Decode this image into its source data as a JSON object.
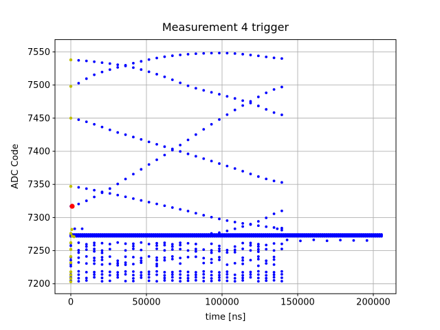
{
  "figure": {
    "background": "#ffffff"
  },
  "chart_data": {
    "type": "scatter",
    "title": "Measurement 4 trigger",
    "xlabel": "time [ns]",
    "ylabel": "ADC Code",
    "xlim": [
      -10455,
      215000
    ],
    "ylim": [
      7185,
      7568.6
    ],
    "xticks": [
      0,
      50000,
      100000,
      150000,
      200000
    ],
    "yticks": [
      7200,
      7250,
      7300,
      7350,
      7400,
      7450,
      7500,
      7550
    ],
    "grid": true,
    "legend": "none",
    "colors": {
      "trace": "#0000ff",
      "first_sample": "#bfbf00",
      "trigger": "#ff0000",
      "grid": "#b0b0b0",
      "axis": "#000000",
      "text": "#000000"
    },
    "seed": 7,
    "sample_step_ns": 5167,
    "num_columns": 28,
    "traces": [
      {
        "name": "falling-from-7538",
        "control": [
          [
            0,
            7538
          ],
          [
            20000,
            7534
          ],
          [
            40000,
            7527
          ],
          [
            60000,
            7514
          ],
          [
            80000,
            7497
          ],
          [
            100000,
            7485
          ],
          [
            120000,
            7472
          ],
          [
            139509,
            7455
          ]
        ]
      },
      {
        "name": "rising-from-7498",
        "control": [
          [
            0,
            7498
          ],
          [
            15000,
            7515
          ],
          [
            30000,
            7526
          ],
          [
            45000,
            7535
          ],
          [
            60000,
            7542
          ],
          [
            75000,
            7546
          ],
          [
            90000,
            7548
          ],
          [
            105000,
            7548
          ],
          [
            120000,
            7545
          ],
          [
            139509,
            7540
          ]
        ]
      },
      {
        "name": "falling-from-7450",
        "control": [
          [
            0,
            7450
          ],
          [
            30000,
            7429
          ],
          [
            68000,
            7403
          ],
          [
            100000,
            7380
          ],
          [
            139509,
            7353
          ]
        ]
      },
      {
        "name": "rising-from-trigger",
        "control": [
          [
            0,
            7317
          ],
          [
            22000,
            7339
          ],
          [
            46000,
            7372
          ],
          [
            68000,
            7403
          ],
          [
            91000,
            7438
          ],
          [
            117000,
            7473
          ],
          [
            139509,
            7497
          ]
        ]
      },
      {
        "name": "falling-from-7347",
        "control": [
          [
            0,
            7347
          ],
          [
            22000,
            7338
          ],
          [
            48000,
            7325
          ],
          [
            77000,
            7310
          ],
          [
            100000,
            7297
          ],
          [
            120000,
            7289
          ],
          [
            139509,
            7284
          ]
        ]
      },
      {
        "name": "rising-from-baseline",
        "kmin": 18,
        "control": [
          [
            95000,
            7276
          ],
          [
            110000,
            7284
          ],
          [
            125000,
            7295
          ],
          [
            139509,
            7310
          ]
        ]
      }
    ],
    "baseline_band": {
      "y": 7273,
      "x0": 0,
      "x1": 205400,
      "step": 1300,
      "offsets": [
        0,
        1.3,
        -1.3
      ]
    },
    "above_band_points": [
      [
        2600,
        7283
      ],
      [
        7500,
        7283
      ],
      [
        136500,
        7283
      ],
      [
        139500,
        7281
      ]
    ],
    "right_sparse_row": {
      "y": 7265.5,
      "x0": 143000,
      "x1": 196000,
      "step": 8800
    },
    "column_rows": [
      {
        "y": 7261,
        "p": 0.88,
        "dy": -3.6,
        "p2": 0.5
      },
      {
        "y": 7251.5,
        "p": 0.85,
        "dy": -3.6,
        "p2": 0.45
      },
      {
        "y": 7240,
        "p": 0.75,
        "dy": -4.0,
        "p2": 0.5
      },
      {
        "y": 7231,
        "p": 0.68,
        "dy": -3.2,
        "p2": 0.35
      }
    ],
    "bottom_strip": {
      "ys": [
        7218,
        7213.5,
        7209,
        7204.5
      ],
      "p": 0.93
    },
    "first_sample_points": [
      [
        0,
        7538
      ],
      [
        0,
        7498
      ],
      [
        0,
        7450
      ],
      [
        0,
        7347
      ],
      [
        700,
        7282
      ],
      [
        0,
        7276
      ],
      [
        900,
        7272
      ],
      [
        2100,
        7271
      ],
      [
        0,
        7262
      ],
      [
        0,
        7252
      ],
      [
        0,
        7241
      ],
      [
        0,
        7232
      ],
      [
        0,
        7218
      ],
      [
        0,
        7213
      ],
      [
        0,
        7208
      ],
      [
        0,
        7203
      ]
    ],
    "trigger_point": {
      "x": 900,
      "y": 7317
    }
  }
}
